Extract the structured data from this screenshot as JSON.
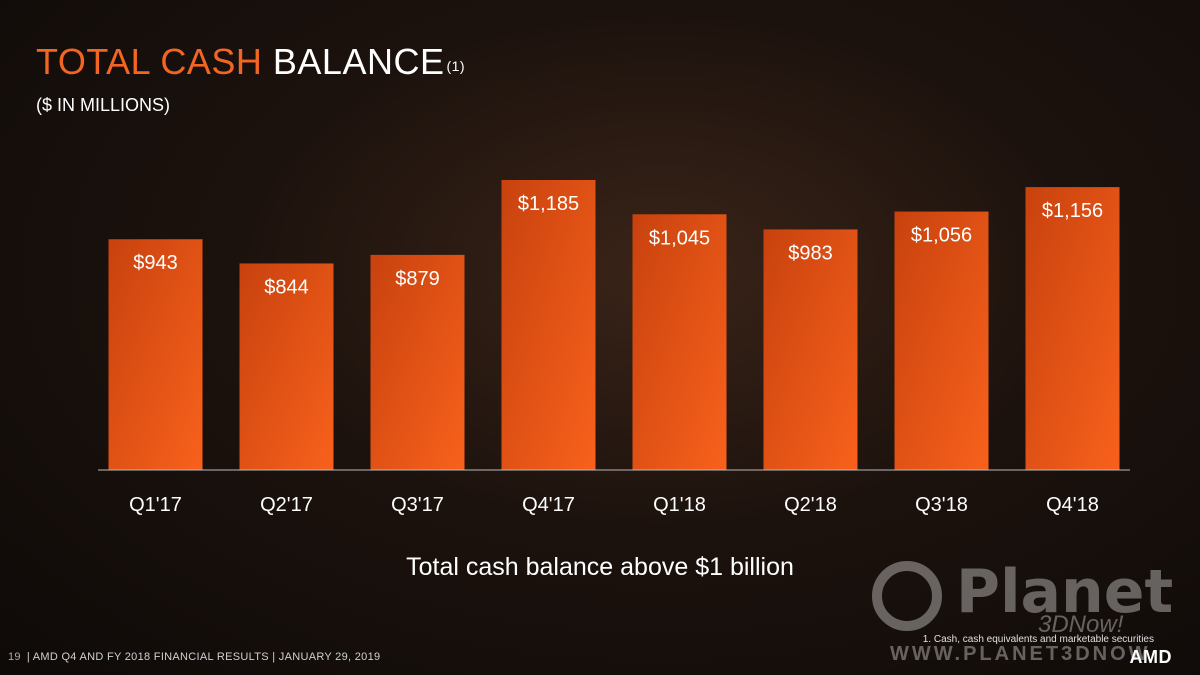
{
  "header": {
    "title_accent": "TOTAL CASH",
    "title_main": "BALANCE",
    "title_sup": "(1)",
    "subtitle": "($ IN MILLIONS)"
  },
  "chart_data": {
    "type": "bar",
    "categories": [
      "Q1'17",
      "Q2'17",
      "Q3'17",
      "Q4'17",
      "Q1'18",
      "Q2'18",
      "Q3'18",
      "Q4'18"
    ],
    "values": [
      943,
      844,
      879,
      1185,
      1045,
      983,
      1056,
      1156
    ],
    "data_labels": [
      "$943",
      "$844",
      "$879",
      "$1,185",
      "$1,045",
      "$983",
      "$1,056",
      "$1,156"
    ],
    "title": "TOTAL CASH BALANCE(1)",
    "ylabel": "",
    "xlabel": "",
    "ylim": [
      0,
      1200
    ],
    "grid": false,
    "bar_color": "#f26522"
  },
  "note": "Total cash balance above $1 billion",
  "footnote": "1.  Cash, cash equivalents and marketable securities",
  "footer": {
    "page_number": "19",
    "text": "| AMD Q4 AND FY 2018 FINANCIAL RESULTS |  JANUARY 29, 2019"
  },
  "logo": {
    "text": "AMD"
  },
  "watermark": {
    "brand": "Planet",
    "tagline": "3DNow!",
    "url": "WWW.PLANET3DNOW"
  },
  "colors": {
    "accent": "#f26522",
    "background": "#1c120d"
  }
}
